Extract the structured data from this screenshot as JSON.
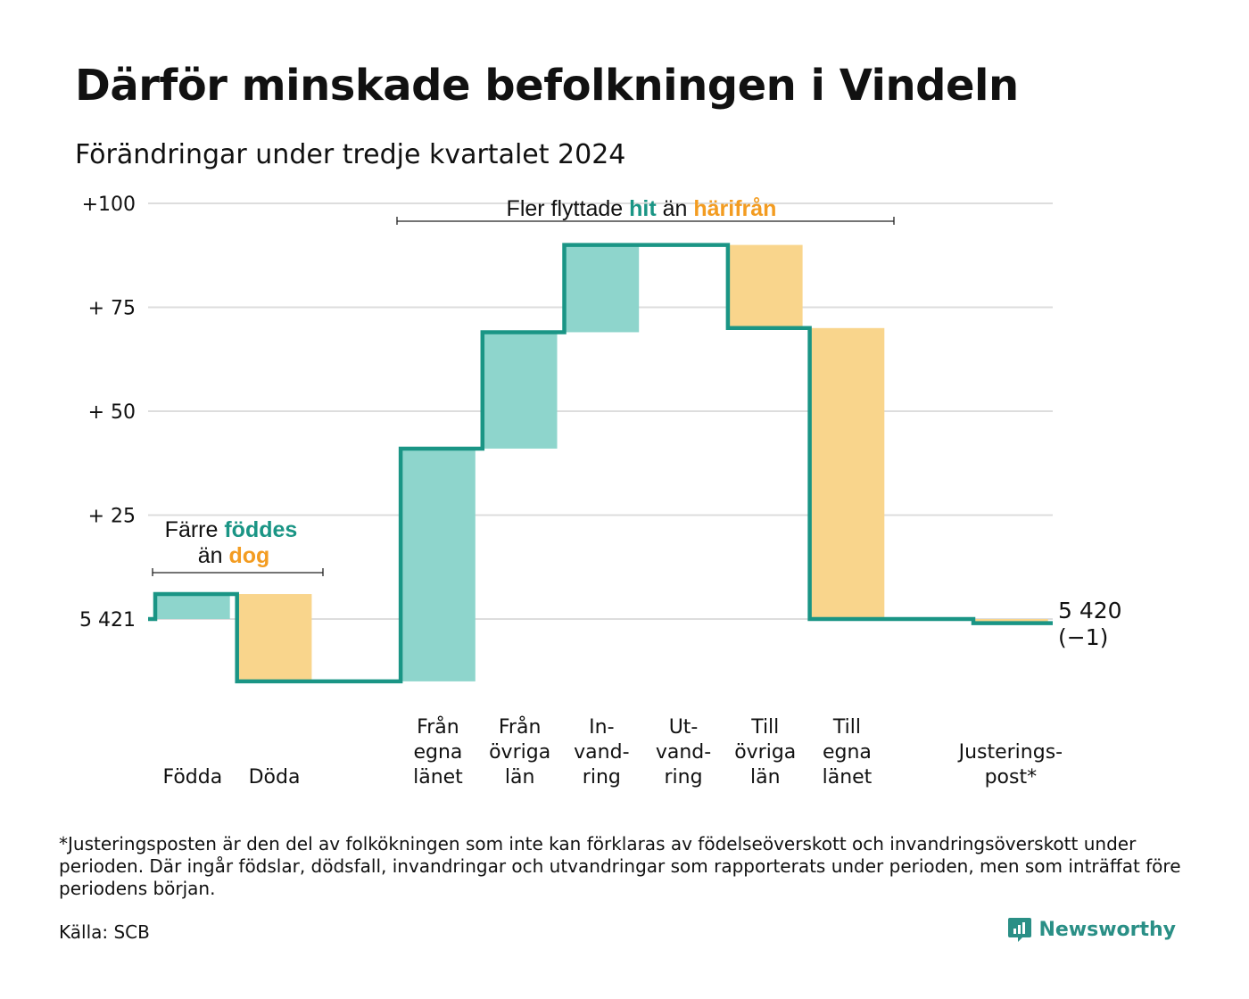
{
  "header": {
    "title": "Därför minskade befolkningen i Vindeln",
    "subtitle": "Förändringar under tredje kvartalet 2024"
  },
  "colors": {
    "teal_line": "#1a9585",
    "teal_fill": "#8ed5cc",
    "orange_fill": "#f9d58c",
    "orange_text": "#f39c21",
    "teal_text": "#1a9585",
    "grid": "#dddddd"
  },
  "chart_data": {
    "type": "waterfall",
    "y_ticks": [
      {
        "value": 0,
        "label": "5 421"
      },
      {
        "value": 25,
        "label": "+ 25"
      },
      {
        "value": 50,
        "label": "+ 50"
      },
      {
        "value": 75,
        "label": "+ 75"
      },
      {
        "value": 100,
        "label": "+100"
      }
    ],
    "ylim": [
      -15,
      100
    ],
    "steps": [
      {
        "lines": [
          "Födda"
        ],
        "change": 6,
        "kind": "in"
      },
      {
        "lines": [
          "Döda"
        ],
        "change": -21,
        "kind": "out"
      },
      {
        "lines": [],
        "change": 0,
        "kind": "gap"
      },
      {
        "lines": [
          "Från",
          "egna",
          "länet"
        ],
        "change": 56,
        "kind": "in"
      },
      {
        "lines": [
          "Från",
          "övriga",
          "län"
        ],
        "change": 28,
        "kind": "in"
      },
      {
        "lines": [
          "In-",
          "vand-",
          "ring"
        ],
        "change": 21,
        "kind": "in"
      },
      {
        "lines": [
          "Ut-",
          "vand-",
          "ring"
        ],
        "change": 0,
        "kind": "out"
      },
      {
        "lines": [
          "Till",
          "övriga",
          "län"
        ],
        "change": -20,
        "kind": "out"
      },
      {
        "lines": [
          "Till",
          "egna",
          "länet"
        ],
        "change": -70,
        "kind": "out"
      },
      {
        "lines": [],
        "change": 0,
        "kind": "gap"
      },
      {
        "lines": [
          "Justerings-",
          "post*"
        ],
        "change": -1,
        "kind": "out"
      }
    ],
    "end_label": [
      "5 420",
      "(−1)"
    ],
    "annotations": [
      {
        "id": "birth",
        "line1": [
          "Färre ",
          "föddes"
        ],
        "line2": [
          "än ",
          "dog"
        ]
      },
      {
        "id": "migration",
        "parts": [
          "Fler flyttade ",
          "hit",
          " än ",
          "härifrån"
        ]
      }
    ]
  },
  "footnote": "*Justeringsposten är den del av folkökningen som inte kan förklaras av födelseöverskott och invandringsöverskott under perioden. Där ingår födslar, dödsfall, invandringar och utvandringar som rapporterats under perioden, men som inträffat före periodens början.",
  "source": "Källa: SCB",
  "brand": {
    "name": "Newsworthy",
    "icon": "newsworthy-logo-icon"
  }
}
